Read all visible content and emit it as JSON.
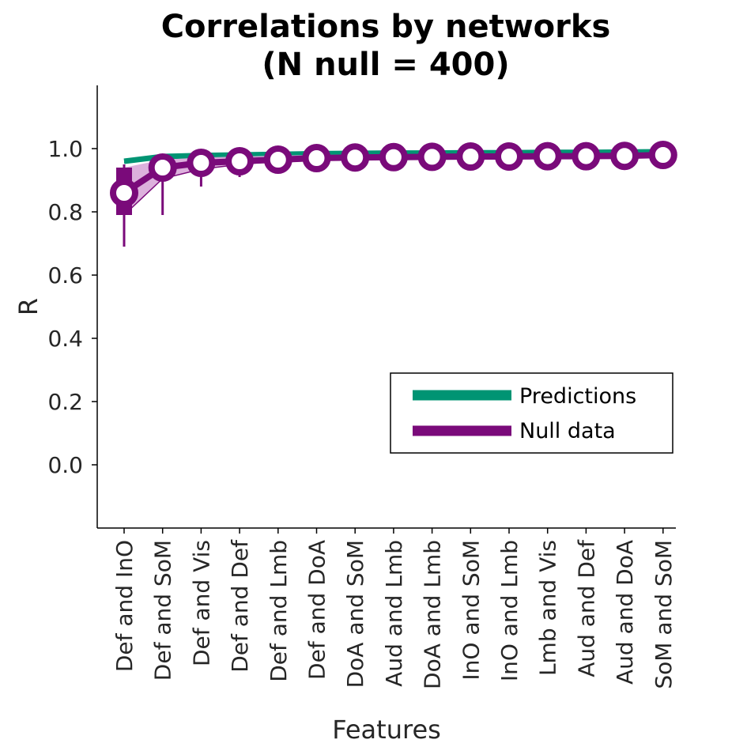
{
  "chart_data": {
    "type": "line",
    "title_line1": "Correlations by networks",
    "title_line2": "(N null = 400)",
    "xlabel": "Features",
    "ylabel": "R",
    "ylim": [
      -0.2,
      1.2
    ],
    "yticks": [
      "1.0",
      "0.8",
      "0.6",
      "0.4",
      "0.2",
      "0.0"
    ],
    "categories": [
      "Def and InO",
      "Def and SoM",
      "Def and Vis",
      "Def and Def",
      "Def and Lmb",
      "Def and DoA",
      "DoA and SoM",
      "Aud and Lmb",
      "DoA and Lmb",
      "InO and SoM",
      "InO and Lmb",
      "Lmb and Vis",
      "Aud and Def",
      "Aud and DoA",
      "SoM and SoM"
    ],
    "legend_position": "lower-right",
    "colors": {
      "predictions": "#009473",
      "null": "#7a0a7a",
      "null_band": "#d9a8d9"
    },
    "series": [
      {
        "name": "Predictions",
        "values": [
          0.96,
          0.975,
          0.978,
          0.98,
          0.982,
          0.984,
          0.985,
          0.986,
          0.986,
          0.987,
          0.987,
          0.988,
          0.988,
          0.989,
          0.99
        ]
      },
      {
        "name": "Null data",
        "median": [
          0.86,
          0.94,
          0.955,
          0.96,
          0.965,
          0.97,
          0.972,
          0.973,
          0.974,
          0.975,
          0.975,
          0.976,
          0.976,
          0.977,
          0.98
        ],
        "q1": [
          0.79,
          0.905,
          0.935,
          0.95,
          0.96,
          0.966,
          0.968,
          0.97,
          0.971,
          0.972,
          0.972,
          0.973,
          0.973,
          0.974,
          0.977
        ],
        "q3": [
          0.94,
          0.965,
          0.972,
          0.975,
          0.978,
          0.98,
          0.981,
          0.981,
          0.982,
          0.982,
          0.983,
          0.983,
          0.983,
          0.984,
          0.986
        ],
        "min": [
          0.69,
          0.79,
          0.88,
          0.91,
          0.94,
          0.95,
          0.955,
          0.958,
          0.96,
          0.961,
          0.962,
          0.963,
          0.964,
          0.965,
          0.97
        ],
        "max": [
          0.95,
          0.975,
          0.98,
          0.985,
          0.987,
          0.988,
          0.989,
          0.99,
          0.99,
          0.99,
          0.991,
          0.991,
          0.991,
          0.992,
          0.993
        ]
      }
    ]
  }
}
